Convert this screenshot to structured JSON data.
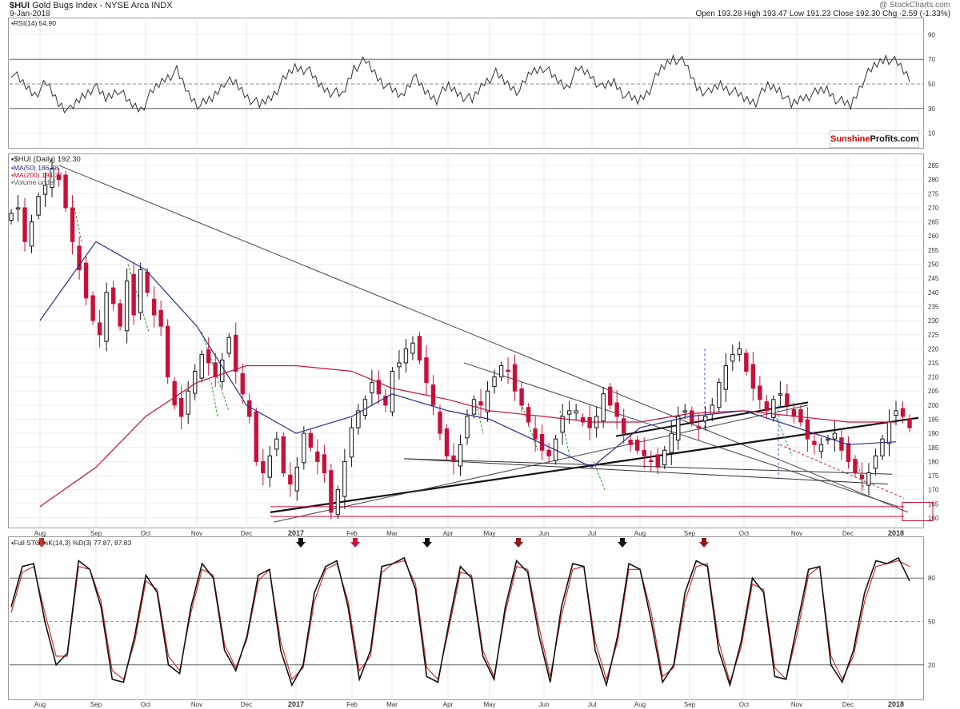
{
  "header": {
    "symbol_title": "$HUI",
    "name": "Gold Bugs Index - NYSE Arca INDX",
    "date": "9-Jan-2018",
    "watermark": "@ StockCharts.com",
    "ohlc": "Open 193.28  High 193.47  Low 191.23  Close 192.30  Chg -2.59 (-1.33%)",
    "logo_part1": "Sunshine",
    "logo_part2": "Profits.com"
  },
  "legends": {
    "rsi": "RSI(14) 54.90",
    "price": "$HUI (Daily) 192.30",
    "ma50": "MA(50) 186.88",
    "ma200": "MA(200) 194.32",
    "volume": "Volume undef",
    "sto": "Full STO %K(14,3) %D(3) 77.87, 87.83"
  },
  "colors": {
    "up": "#111111",
    "down": "#c8103a",
    "ma50": "#2c2c8a",
    "ma200": "#c8103a",
    "rsi": "#333333",
    "sto_k": "#111111",
    "sto_d": "#d02020",
    "green_dash": "#2a9a2a",
    "blue_dash": "#3050e0"
  },
  "chart_data": [
    {
      "type": "line",
      "panel": "rsi",
      "ylim": [
        0,
        100
      ],
      "y_ticks": [
        90,
        70,
        50,
        30,
        10
      ],
      "reference_lines": [
        70,
        50,
        30
      ],
      "grid": true,
      "series": [
        {
          "name": "RSI(14)",
          "approx_values": [
            60,
            50,
            42,
            50,
            35,
            28,
            40,
            48,
            38,
            46,
            34,
            30,
            44,
            55,
            60,
            42,
            32,
            38,
            52,
            50,
            40,
            32,
            40,
            52,
            64,
            62,
            50,
            44,
            40,
            64,
            68,
            56,
            46,
            40,
            56,
            44,
            38,
            48,
            42,
            36,
            52,
            58,
            50,
            44,
            60,
            64,
            54,
            48,
            62,
            58,
            46,
            52,
            40,
            36,
            46,
            62,
            72,
            66,
            48,
            42,
            50,
            44,
            38,
            36,
            48,
            46,
            32,
            40,
            42,
            46,
            36,
            32,
            52,
            64,
            72,
            66,
            55
          ]
        }
      ]
    },
    {
      "type": "candlestick",
      "panel": "price",
      "title": "$HUI (Daily) 192.30",
      "ylim": [
        158,
        287
      ],
      "y_ticks": [
        285,
        280,
        275,
        270,
        265,
        260,
        255,
        250,
        245,
        240,
        235,
        230,
        225,
        220,
        215,
        210,
        205,
        200,
        195,
        190,
        185,
        180,
        175,
        170,
        165,
        160
      ],
      "x_tick_labels": [
        "Aug",
        "Sep",
        "Oct",
        "Nov",
        "Dec",
        "2017",
        "Feb",
        "Mar",
        "Apr",
        "May",
        "Jun",
        "Jul",
        "Aug",
        "Sep",
        "Oct",
        "Nov",
        "Dec",
        "2018"
      ],
      "grid": true,
      "close_series": [
        268,
        270,
        258,
        265,
        274,
        278,
        284,
        280,
        270,
        258,
        248,
        238,
        230,
        225,
        240,
        236,
        228,
        244,
        232,
        248,
        240,
        232,
        228,
        210,
        200,
        196,
        205,
        212,
        218,
        215,
        210,
        216,
        224,
        212,
        204,
        196,
        180,
        176,
        182,
        188,
        176,
        172,
        178,
        190,
        185,
        180,
        176,
        162,
        170,
        180,
        192,
        198,
        202,
        208,
        204,
        200,
        212,
        215,
        220,
        222,
        216,
        208,
        200,
        190,
        182,
        180,
        186,
        196,
        202,
        200,
        205,
        210,
        214,
        212,
        205,
        200,
        194,
        188,
        184,
        182,
        188,
        196,
        198,
        198,
        194,
        192,
        196,
        204,
        200,
        196,
        190,
        186,
        184,
        182,
        180,
        178,
        184,
        190,
        196,
        198,
        194,
        192,
        196,
        200,
        208,
        214,
        218,
        220,
        212,
        206,
        202,
        198,
        202,
        204,
        200,
        196,
        194,
        188,
        186,
        186,
        188,
        190,
        184,
        180,
        176,
        174,
        176,
        182,
        188,
        194,
        198,
        196,
        192
      ],
      "series": [
        {
          "name": "MA(50)",
          "values_at_months": [
            230,
            258,
            248,
            228,
            200,
            190,
            196,
            204,
            198,
            195,
            186,
            178,
            192,
            196,
            198,
            192,
            186,
            187
          ]
        },
        {
          "name": "MA(200)",
          "values_at_months": [
            164,
            178,
            196,
            208,
            214,
            214,
            212,
            206,
            202,
            198,
            196,
            194,
            194,
            197,
            198,
            196,
            194,
            194
          ]
        }
      ],
      "annotations": [
        {
          "type": "trendline",
          "from": [
            "Aug 2016",
            285
          ],
          "to": [
            "Dec 2017",
            163
          ]
        },
        {
          "type": "trendline",
          "from": [
            "Dec 2016",
            164
          ],
          "to": [
            "Jan 2018",
            195
          ]
        },
        {
          "type": "horizontal",
          "value": 164
        },
        {
          "type": "horizontal",
          "value": 160.5
        }
      ]
    },
    {
      "type": "line",
      "panel": "stochastic",
      "ylim": [
        0,
        100
      ],
      "y_ticks": [
        80,
        50,
        20
      ],
      "reference_lines": [
        80,
        50,
        20
      ],
      "series": [
        {
          "name": "%K",
          "approx_values": [
            60,
            88,
            90,
            50,
            20,
            28,
            92,
            86,
            60,
            10,
            8,
            40,
            82,
            70,
            20,
            14,
            60,
            90,
            80,
            30,
            16,
            40,
            82,
            86,
            30,
            6,
            20,
            70,
            88,
            92,
            60,
            10,
            30,
            88,
            90,
            94,
            72,
            12,
            8,
            50,
            88,
            80,
            26,
            10,
            60,
            92,
            84,
            40,
            8,
            60,
            90,
            88,
            30,
            6,
            40,
            90,
            86,
            50,
            8,
            20,
            70,
            92,
            88,
            30,
            6,
            36,
            80,
            70,
            12,
            10,
            48,
            86,
            88,
            20,
            8,
            30,
            70,
            92,
            90,
            94,
            78
          ]
        },
        {
          "name": "%D",
          "approx_values": [
            56,
            84,
            88,
            56,
            26,
            26,
            88,
            86,
            64,
            16,
            10,
            36,
            78,
            72,
            26,
            16,
            56,
            86,
            82,
            34,
            18,
            38,
            78,
            86,
            36,
            10,
            18,
            64,
            86,
            90,
            64,
            16,
            26,
            84,
            90,
            92,
            76,
            18,
            10,
            46,
            84,
            82,
            30,
            12,
            56,
            88,
            86,
            46,
            12,
            54,
            86,
            88,
            36,
            10,
            36,
            86,
            86,
            56,
            12,
            18,
            64,
            88,
            90,
            36,
            8,
            32,
            76,
            72,
            18,
            10,
            42,
            82,
            88,
            26,
            10,
            26,
            64,
            88,
            90,
            92,
            88
          ]
        }
      ],
      "arrows": [
        {
          "month": "Aug",
          "color": "#c0392b"
        },
        {
          "month": "Jan",
          "color": "#111111"
        },
        {
          "month": "Feb",
          "color": "#c8103a"
        },
        {
          "month": "Mar",
          "color": "#111111"
        },
        {
          "month": "May",
          "color": "#8b1a1a"
        },
        {
          "month": "Jul",
          "color": "#111111"
        },
        {
          "month": "Sep",
          "color": "#8b1a1a"
        }
      ]
    }
  ]
}
